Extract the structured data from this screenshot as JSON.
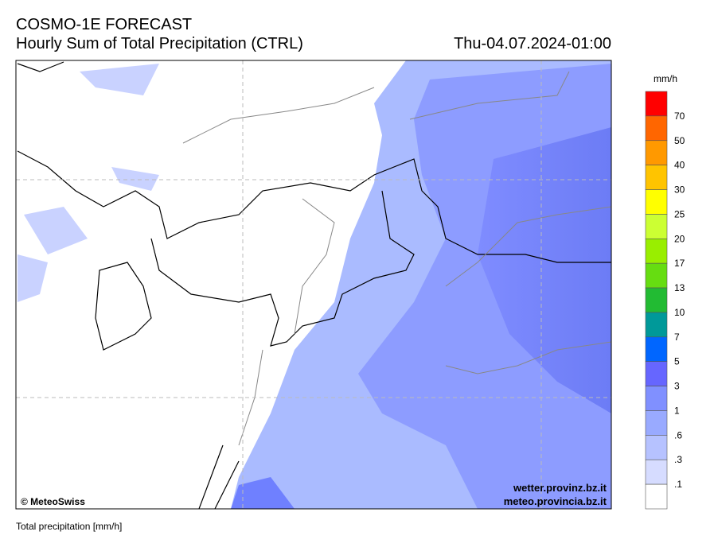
{
  "header": {
    "title": "COSMO-1E FORECAST",
    "subtitle": "Hourly Sum of Total Precipitation (CTRL)",
    "datetime": "Thu-04.07.2024-01:00"
  },
  "map": {
    "credit": "© MeteoSwiss",
    "urls": [
      "wetter.provinz.bz.it",
      "meteo.provincia.bz.it"
    ]
  },
  "legend": {
    "unit": "mm/h",
    "labels": [
      "70",
      "50",
      "40",
      "30",
      "25",
      "20",
      "17",
      "13",
      "10",
      "7",
      "5",
      "3",
      "1",
      ".6",
      ".3",
      ".1"
    ],
    "colors": [
      "#ff0000",
      "#ff6600",
      "#ff9900",
      "#ffc400",
      "#ffff00",
      "#ccff33",
      "#99ee00",
      "#66dd11",
      "#22bb33",
      "#009999",
      "#0066ff",
      "#6666ff",
      "#8090ff",
      "#99aaff",
      "#b6c2ff",
      "#d6dcff",
      "#ffffff"
    ]
  },
  "footer": {
    "text": "Total precipitation [mm/h]"
  }
}
